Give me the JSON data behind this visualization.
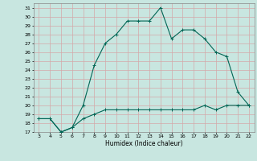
{
  "title": "",
  "xlabel": "Humidex (Indice chaleur)",
  "ylabel": "",
  "bg_color": "#c8e6e0",
  "grid_color": "#d4a8a8",
  "line_color": "#006655",
  "x_humidex": [
    3,
    4,
    5,
    6,
    7,
    8,
    9,
    10,
    11,
    12,
    13,
    14,
    15,
    16,
    17,
    18,
    19,
    20,
    21,
    22
  ],
  "y_curve1": [
    18.5,
    18.5,
    17.0,
    17.5,
    20.0,
    24.5,
    27.0,
    28.0,
    29.5,
    29.5,
    29.5,
    31.0,
    27.5,
    28.5,
    28.5,
    27.5,
    26.0,
    25.5,
    21.5,
    20.0
  ],
  "y_curve2": [
    18.5,
    18.5,
    17.0,
    17.5,
    18.5,
    19.0,
    19.5,
    19.5,
    19.5,
    19.5,
    19.5,
    19.5,
    19.5,
    19.5,
    19.5,
    20.0,
    19.5,
    20.0,
    20.0,
    20.0
  ],
  "xlim": [
    2.5,
    22.5
  ],
  "ylim": [
    17,
    31.5
  ],
  "yticks": [
    17,
    18,
    19,
    20,
    21,
    22,
    23,
    24,
    25,
    26,
    27,
    28,
    29,
    30,
    31
  ],
  "xticks": [
    3,
    4,
    5,
    6,
    7,
    8,
    9,
    10,
    11,
    12,
    13,
    14,
    15,
    16,
    17,
    18,
    19,
    20,
    21,
    22
  ]
}
